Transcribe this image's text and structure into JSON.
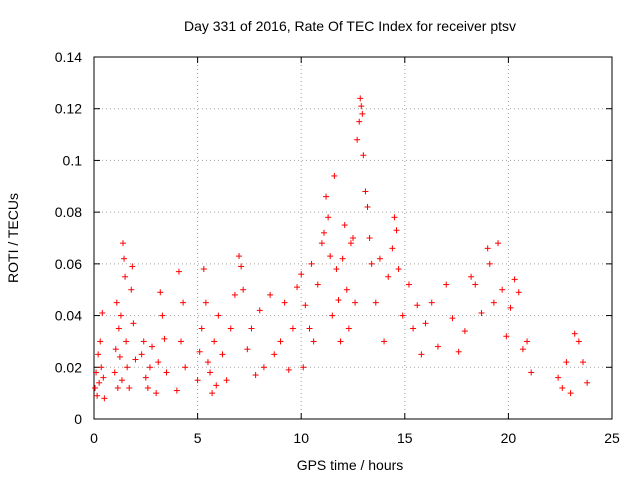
{
  "chart_data": {
    "type": "scatter",
    "title": "Day 331 of 2016, Rate Of TEC Index for receiver ptsv",
    "xlabel": "GPS time / hours",
    "ylabel": "ROTI / TECUs",
    "xlim": [
      0,
      25
    ],
    "ylim": [
      0,
      0.14
    ],
    "xticks": [
      "0",
      "5",
      "10",
      "15",
      "20",
      "25"
    ],
    "yticks": [
      "0",
      "0.02",
      "0.04",
      "0.06",
      "0.08",
      "0.1",
      "0.12",
      "0.14"
    ],
    "grid": true,
    "marker": "plus",
    "color": "#ff0000",
    "series": [
      {
        "points": [
          [
            0.05,
            0.012
          ],
          [
            0.1,
            0.018
          ],
          [
            0.15,
            0.009
          ],
          [
            0.2,
            0.025
          ],
          [
            0.25,
            0.014
          ],
          [
            0.3,
            0.03
          ],
          [
            0.35,
            0.02
          ],
          [
            0.4,
            0.041
          ],
          [
            0.45,
            0.016
          ],
          [
            0.5,
            0.008
          ],
          [
            1.0,
            0.018
          ],
          [
            1.05,
            0.027
          ],
          [
            1.1,
            0.045
          ],
          [
            1.15,
            0.012
          ],
          [
            1.2,
            0.035
          ],
          [
            1.25,
            0.024
          ],
          [
            1.3,
            0.04
          ],
          [
            1.35,
            0.015
          ],
          [
            1.4,
            0.068
          ],
          [
            1.45,
            0.062
          ],
          [
            1.5,
            0.055
          ],
          [
            1.55,
            0.03
          ],
          [
            1.6,
            0.02
          ],
          [
            1.7,
            0.012
          ],
          [
            1.8,
            0.05
          ],
          [
            1.85,
            0.059
          ],
          [
            1.9,
            0.037
          ],
          [
            2.0,
            0.023
          ],
          [
            2.3,
            0.025
          ],
          [
            2.4,
            0.03
          ],
          [
            2.5,
            0.016
          ],
          [
            2.6,
            0.012
          ],
          [
            2.7,
            0.02
          ],
          [
            2.8,
            0.028
          ],
          [
            3.0,
            0.01
          ],
          [
            3.1,
            0.022
          ],
          [
            3.2,
            0.049
          ],
          [
            3.3,
            0.04
          ],
          [
            3.4,
            0.031
          ],
          [
            3.5,
            0.018
          ],
          [
            4.0,
            0.011
          ],
          [
            4.1,
            0.057
          ],
          [
            4.2,
            0.03
          ],
          [
            4.3,
            0.045
          ],
          [
            4.4,
            0.02
          ],
          [
            5.0,
            0.015
          ],
          [
            5.1,
            0.026
          ],
          [
            5.2,
            0.035
          ],
          [
            5.3,
            0.058
          ],
          [
            5.4,
            0.045
          ],
          [
            5.5,
            0.022
          ],
          [
            5.6,
            0.018
          ],
          [
            5.7,
            0.01
          ],
          [
            5.8,
            0.03
          ],
          [
            5.9,
            0.013
          ],
          [
            6.0,
            0.04
          ],
          [
            6.2,
            0.025
          ],
          [
            6.4,
            0.015
          ],
          [
            6.6,
            0.035
          ],
          [
            6.8,
            0.048
          ],
          [
            7.0,
            0.063
          ],
          [
            7.1,
            0.059
          ],
          [
            7.2,
            0.05
          ],
          [
            7.4,
            0.027
          ],
          [
            7.6,
            0.035
          ],
          [
            7.8,
            0.017
          ],
          [
            8.0,
            0.042
          ],
          [
            8.2,
            0.02
          ],
          [
            8.5,
            0.048
          ],
          [
            8.7,
            0.025
          ],
          [
            9.0,
            0.03
          ],
          [
            9.2,
            0.045
          ],
          [
            9.4,
            0.019
          ],
          [
            9.6,
            0.035
          ],
          [
            9.8,
            0.051
          ],
          [
            10.0,
            0.056
          ],
          [
            10.1,
            0.02
          ],
          [
            10.2,
            0.044
          ],
          [
            10.4,
            0.035
          ],
          [
            10.5,
            0.06
          ],
          [
            10.6,
            0.03
          ],
          [
            10.8,
            0.052
          ],
          [
            11.0,
            0.068
          ],
          [
            11.1,
            0.072
          ],
          [
            11.2,
            0.086
          ],
          [
            11.3,
            0.078
          ],
          [
            11.4,
            0.063
          ],
          [
            11.5,
            0.04
          ],
          [
            11.6,
            0.094
          ],
          [
            11.7,
            0.058
          ],
          [
            11.8,
            0.046
          ],
          [
            11.9,
            0.03
          ],
          [
            12.0,
            0.062
          ],
          [
            12.1,
            0.075
          ],
          [
            12.2,
            0.05
          ],
          [
            12.3,
            0.035
          ],
          [
            12.4,
            0.068
          ],
          [
            12.5,
            0.07
          ],
          [
            12.6,
            0.045
          ],
          [
            12.7,
            0.108
          ],
          [
            12.8,
            0.115
          ],
          [
            12.85,
            0.124
          ],
          [
            12.9,
            0.121
          ],
          [
            12.95,
            0.118
          ],
          [
            13.0,
            0.102
          ],
          [
            13.1,
            0.088
          ],
          [
            13.2,
            0.082
          ],
          [
            13.3,
            0.07
          ],
          [
            13.4,
            0.06
          ],
          [
            13.6,
            0.045
          ],
          [
            13.8,
            0.062
          ],
          [
            14.0,
            0.03
          ],
          [
            14.2,
            0.055
          ],
          [
            14.4,
            0.066
          ],
          [
            14.5,
            0.078
          ],
          [
            14.6,
            0.073
          ],
          [
            14.7,
            0.058
          ],
          [
            14.9,
            0.04
          ],
          [
            15.2,
            0.052
          ],
          [
            15.4,
            0.035
          ],
          [
            15.6,
            0.044
          ],
          [
            15.8,
            0.025
          ],
          [
            16.0,
            0.037
          ],
          [
            16.3,
            0.045
          ],
          [
            16.6,
            0.028
          ],
          [
            17.0,
            0.052
          ],
          [
            17.3,
            0.039
          ],
          [
            17.6,
            0.026
          ],
          [
            17.9,
            0.034
          ],
          [
            18.2,
            0.055
          ],
          [
            18.4,
            0.052
          ],
          [
            18.7,
            0.041
          ],
          [
            19.0,
            0.066
          ],
          [
            19.1,
            0.06
          ],
          [
            19.3,
            0.045
          ],
          [
            19.5,
            0.068
          ],
          [
            19.7,
            0.05
          ],
          [
            19.9,
            0.032
          ],
          [
            20.1,
            0.043
          ],
          [
            20.3,
            0.054
          ],
          [
            20.5,
            0.049
          ],
          [
            20.7,
            0.027
          ],
          [
            20.9,
            0.03
          ],
          [
            21.1,
            0.018
          ],
          [
            22.4,
            0.016
          ],
          [
            22.6,
            0.012
          ],
          [
            22.8,
            0.022
          ],
          [
            23.0,
            0.01
          ],
          [
            23.2,
            0.033
          ],
          [
            23.4,
            0.03
          ],
          [
            23.6,
            0.022
          ],
          [
            23.8,
            0.014
          ]
        ]
      }
    ]
  }
}
